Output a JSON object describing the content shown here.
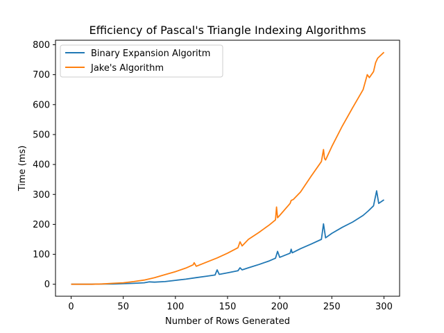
{
  "chart_data": {
    "type": "line",
    "title": "Efficiency of Pascal's Triangle Indexing Algorithms",
    "xlabel": "Number of Rows Generated",
    "ylabel": "Time (ms)",
    "xlim": [
      -15,
      315
    ],
    "ylim": [
      -40,
      815
    ],
    "xticks": [
      0,
      50,
      100,
      150,
      200,
      250,
      300
    ],
    "yticks": [
      0,
      100,
      200,
      300,
      400,
      500,
      600,
      700,
      800
    ],
    "grid": false,
    "legend_position": "upper-left",
    "series": [
      {
        "name": "Binary Expansion Algoritm",
        "color": "#1f77b4",
        "x": [
          0,
          10,
          20,
          30,
          40,
          50,
          60,
          70,
          75,
          80,
          90,
          100,
          110,
          120,
          130,
          138,
          140,
          142,
          150,
          160,
          162,
          164,
          170,
          180,
          190,
          196,
          198,
          200,
          210,
          211,
          212,
          220,
          230,
          240,
          242,
          244,
          250,
          260,
          270,
          280,
          285,
          290,
          293,
          295,
          297,
          300
        ],
        "y": [
          0,
          0,
          0,
          1,
          1,
          2,
          3,
          5,
          8,
          7,
          9,
          13,
          17,
          22,
          27,
          31,
          48,
          33,
          38,
          45,
          55,
          48,
          55,
          66,
          78,
          87,
          110,
          90,
          104,
          117,
          105,
          119,
          134,
          150,
          202,
          155,
          170,
          190,
          208,
          230,
          245,
          262,
          312,
          270,
          275,
          282
        ]
      },
      {
        "name": "Jake's Algorithm",
        "color": "#ff7f0e",
        "x": [
          0,
          10,
          20,
          30,
          40,
          50,
          60,
          70,
          80,
          90,
          100,
          110,
          117,
          118,
          120,
          130,
          140,
          150,
          160,
          162,
          164,
          170,
          180,
          190,
          196,
          197,
          198,
          200,
          210,
          211,
          213,
          220,
          230,
          240,
          242,
          243,
          244,
          250,
          260,
          270,
          280,
          284,
          286,
          290,
          292,
          294,
          300
        ],
        "y": [
          0,
          0,
          0,
          1,
          3,
          5,
          9,
          14,
          22,
          32,
          42,
          54,
          65,
          72,
          60,
          74,
          88,
          104,
          122,
          142,
          128,
          150,
          173,
          198,
          215,
          258,
          222,
          230,
          270,
          280,
          283,
          308,
          360,
          410,
          450,
          420,
          415,
          460,
          528,
          590,
          650,
          700,
          690,
          710,
          740,
          755,
          775
        ]
      }
    ]
  }
}
